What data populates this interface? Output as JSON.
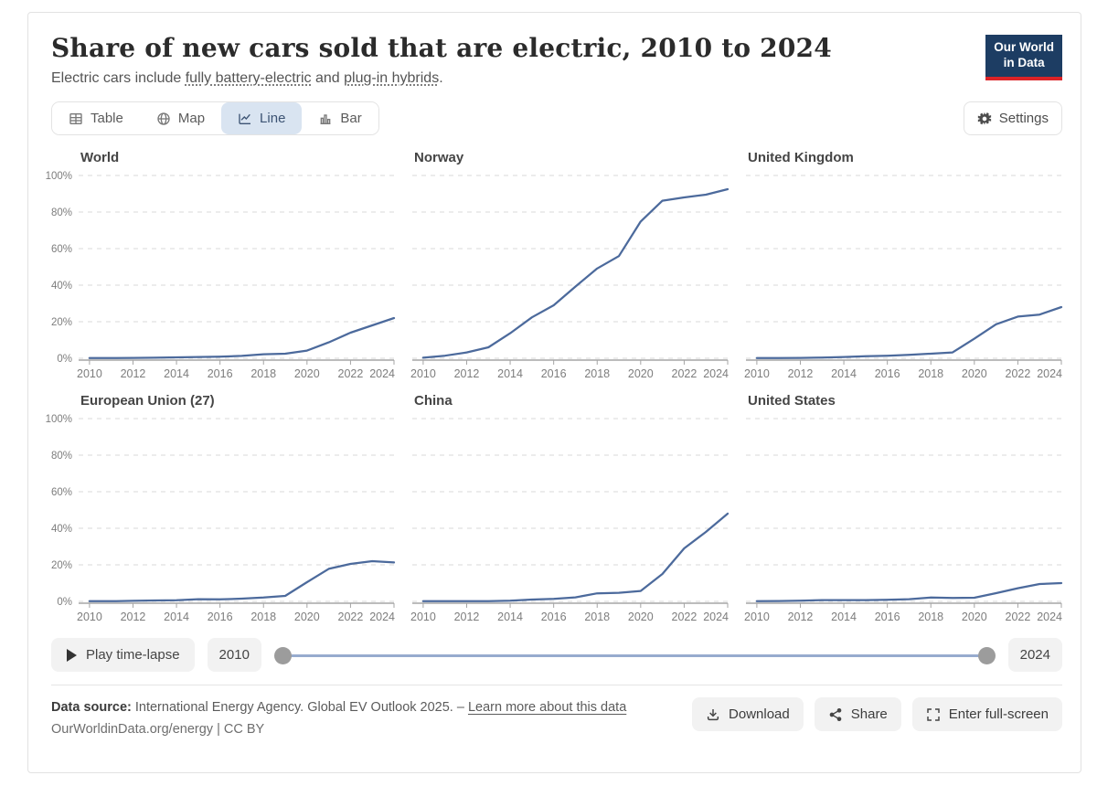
{
  "header": {
    "title": "Share of new cars sold that are electric, 2010 to 2024",
    "subtitle_prefix": "Electric cars include ",
    "link_battery": "fully battery-electric",
    "subtitle_mid": " and ",
    "link_hybrid": "plug-in hybrids",
    "subtitle_suffix": ".",
    "logo_line1": "Our World",
    "logo_line2": "in Data"
  },
  "toolbar": {
    "tabs": [
      {
        "label": "Table",
        "icon": "table-icon",
        "active": false
      },
      {
        "label": "Map",
        "icon": "globe-icon",
        "active": false
      },
      {
        "label": "Line",
        "icon": "line-chart-icon",
        "active": true
      },
      {
        "label": "Bar",
        "icon": "bar-chart-icon",
        "active": false
      }
    ],
    "settings_label": "Settings",
    "settings_icon": "gear-icon"
  },
  "chart_data": {
    "type": "line",
    "title": "Share of new cars sold that are electric, 2010 to 2024",
    "x": [
      2010,
      2011,
      2012,
      2013,
      2014,
      2015,
      2016,
      2017,
      2018,
      2019,
      2020,
      2021,
      2022,
      2023,
      2024
    ],
    "x_ticks": [
      2010,
      2012,
      2014,
      2016,
      2018,
      2020,
      2022,
      2024
    ],
    "x_range": [
      2009.5,
      2024
    ],
    "y_range": [
      0,
      100
    ],
    "y_ticks": [
      {
        "value": 0,
        "label": "0%"
      },
      {
        "value": 20,
        "label": "20%"
      },
      {
        "value": 40,
        "label": "40%"
      },
      {
        "value": 60,
        "label": "60%"
      },
      {
        "value": 80,
        "label": "80%"
      },
      {
        "value": 100,
        "label": "100%"
      }
    ],
    "grid": true,
    "line_color": "#4c6a9c",
    "facets": [
      {
        "title": "World",
        "show_y_labels": true,
        "values": [
          0.1,
          0.1,
          0.2,
          0.3,
          0.5,
          0.7,
          0.9,
          1.3,
          2.2,
          2.5,
          4.2,
          8.7,
          14,
          18,
          22
        ]
      },
      {
        "title": "Norway",
        "show_y_labels": false,
        "values": [
          0.3,
          1.4,
          3.2,
          6,
          13.7,
          22.4,
          29,
          39.2,
          49.1,
          55.9,
          74.8,
          86.2,
          88,
          89.5,
          92.5
        ]
      },
      {
        "title": "United Kingdom",
        "show_y_labels": false,
        "values": [
          0.1,
          0.1,
          0.2,
          0.4,
          0.7,
          1.1,
          1.4,
          1.9,
          2.5,
          3.2,
          10.7,
          18.6,
          22.8,
          23.9,
          28
        ]
      },
      {
        "title": "European Union (27)",
        "show_y_labels": true,
        "values": [
          0.1,
          0.1,
          0.3,
          0.5,
          0.6,
          1.2,
          1.1,
          1.5,
          2.1,
          3,
          10.5,
          17.8,
          20.5,
          22,
          21.3
        ]
      },
      {
        "title": "China",
        "show_y_labels": false,
        "values": [
          0.1,
          0.1,
          0.1,
          0.1,
          0.4,
          1,
          1.4,
          2.2,
          4.4,
          4.7,
          5.7,
          15,
          29,
          38,
          48
        ]
      },
      {
        "title": "United States",
        "show_y_labels": false,
        "values": [
          0.1,
          0.2,
          0.4,
          0.7,
          0.7,
          0.7,
          0.9,
          1.2,
          2.1,
          1.9,
          2,
          4.5,
          7.2,
          9.5,
          10
        ]
      }
    ]
  },
  "timeline": {
    "play_label": "Play time-lapse",
    "play_icon": "play-icon",
    "start_year": "2010",
    "end_year": "2024"
  },
  "footer": {
    "datasource_label": "Data source:",
    "datasource_text": " International Energy Agency. Global EV Outlook 2025. – ",
    "learn_more_label": "Learn more about this data",
    "credit": "OurWorldinData.org/energy | CC BY",
    "download_label": "Download",
    "share_label": "Share",
    "fullscreen_label": "Enter full-screen",
    "icons": [
      "download-icon",
      "share-icon",
      "fullscreen-icon"
    ]
  }
}
